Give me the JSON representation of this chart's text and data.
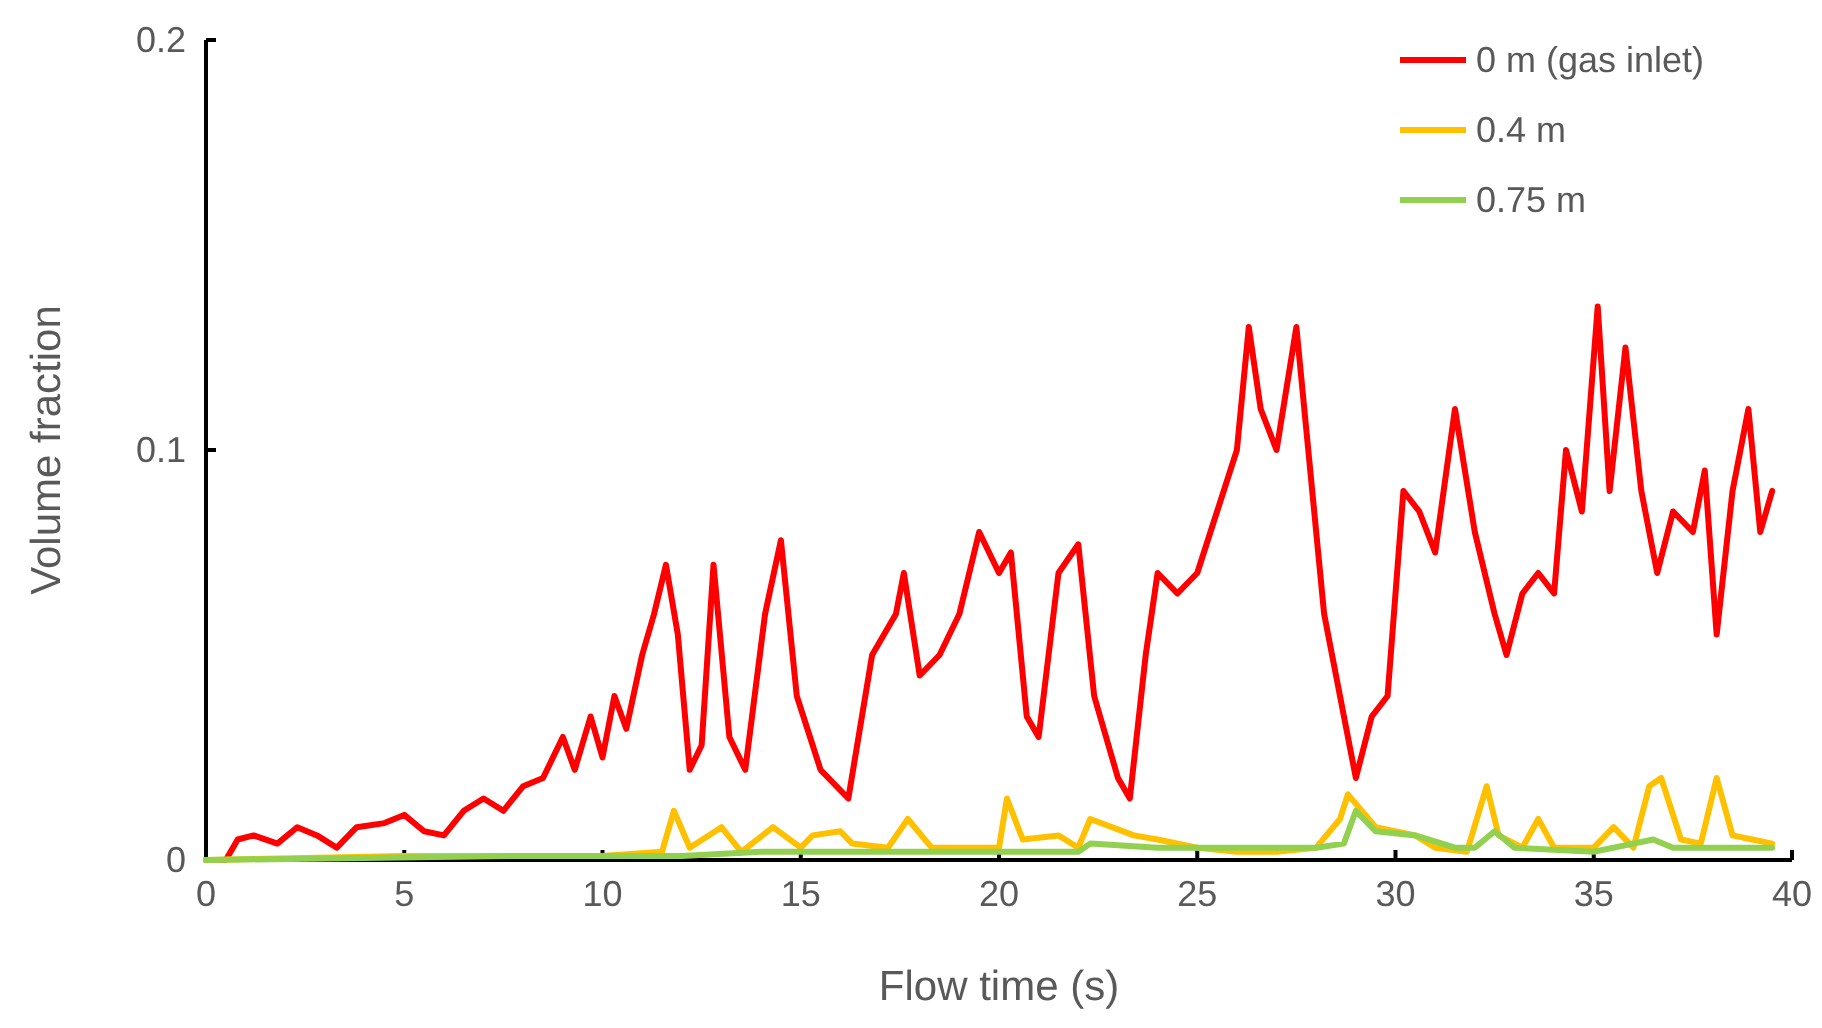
{
  "chart_data": {
    "type": "line",
    "xlabel": "Flow time (s)",
    "ylabel": "Volume fraction",
    "xlim": [
      0,
      40
    ],
    "xticks": [
      0,
      5,
      10,
      15,
      20,
      25,
      30,
      35,
      40
    ],
    "ylim": [
      0,
      0.2
    ],
    "yticks": [
      0,
      0.1,
      0.2
    ],
    "grid": false,
    "legend": "top right",
    "marker": "none",
    "line_style": "solid",
    "series": [
      {
        "name": "0 m (gas inlet)",
        "color": "#ff0000",
        "x": [
          0,
          0.5,
          0.8,
          1.2,
          1.8,
          2.3,
          2.8,
          3.3,
          3.8,
          4.5,
          5,
          5.5,
          6,
          6.5,
          7,
          7.5,
          8,
          8.5,
          9,
          9.3,
          9.7,
          10,
          10.3,
          10.6,
          11,
          11.3,
          11.6,
          11.9,
          12.2,
          12.5,
          12.8,
          13.2,
          13.6,
          14.1,
          14.5,
          14.9,
          15.5,
          16.2,
          16.8,
          17.4,
          17.6,
          18,
          18.5,
          19,
          19.5,
          20,
          20.3,
          20.7,
          21,
          21.5,
          22,
          22.4,
          23,
          23.3,
          23.7,
          24,
          24.5,
          25,
          25.5,
          26,
          26.3,
          26.6,
          27,
          27.5,
          27.8,
          28.2,
          28.6,
          29,
          29.4,
          29.8,
          30.2,
          30.6,
          31,
          31.5,
          32,
          32.5,
          32.8,
          33.2,
          33.6,
          34,
          34.3,
          34.7,
          35.1,
          35.4,
          35.8,
          36.2,
          36.6,
          37,
          37.5,
          37.8,
          38.1,
          38.5,
          38.9,
          39.2,
          39.5
        ],
        "values": [
          0,
          0,
          0.005,
          0.006,
          0.004,
          0.008,
          0.006,
          0.003,
          0.008,
          0.009,
          0.011,
          0.007,
          0.006,
          0.012,
          0.015,
          0.012,
          0.018,
          0.02,
          0.03,
          0.022,
          0.035,
          0.025,
          0.04,
          0.032,
          0.05,
          0.06,
          0.072,
          0.055,
          0.022,
          0.028,
          0.072,
          0.03,
          0.022,
          0.06,
          0.078,
          0.04,
          0.022,
          0.015,
          0.05,
          0.06,
          0.07,
          0.045,
          0.05,
          0.06,
          0.08,
          0.07,
          0.075,
          0.035,
          0.03,
          0.07,
          0.077,
          0.04,
          0.02,
          0.015,
          0.05,
          0.07,
          0.065,
          0.07,
          0.085,
          0.1,
          0.13,
          0.11,
          0.1,
          0.13,
          0.1,
          0.06,
          0.04,
          0.02,
          0.035,
          0.04,
          0.09,
          0.085,
          0.075,
          0.11,
          0.08,
          0.06,
          0.05,
          0.065,
          0.07,
          0.065,
          0.1,
          0.085,
          0.135,
          0.09,
          0.125,
          0.09,
          0.07,
          0.085,
          0.08,
          0.095,
          0.055,
          0.09,
          0.11,
          0.08,
          0.09
        ]
      },
      {
        "name": "0.4 m",
        "color": "#ffc000",
        "x": [
          0,
          5,
          10,
          11.5,
          11.8,
          12.2,
          13,
          13.5,
          14.3,
          15,
          15.3,
          16,
          16.3,
          17.2,
          17.7,
          18.3,
          20,
          20.2,
          20.6,
          21.5,
          22,
          22.3,
          23.4,
          24,
          25,
          26,
          27,
          28,
          28.6,
          28.8,
          29.5,
          30.5,
          31,
          31.8,
          32.3,
          32.6,
          33.2,
          33.6,
          34,
          35,
          35.5,
          36,
          36.4,
          36.7,
          37.2,
          37.7,
          38.1,
          38.5,
          39,
          39.5
        ],
        "values": [
          0,
          0.001,
          0.001,
          0.002,
          0.012,
          0.003,
          0.008,
          0.002,
          0.008,
          0.003,
          0.006,
          0.007,
          0.004,
          0.003,
          0.01,
          0.003,
          0.003,
          0.015,
          0.005,
          0.006,
          0.003,
          0.01,
          0.006,
          0.005,
          0.003,
          0.002,
          0.002,
          0.003,
          0.01,
          0.016,
          0.008,
          0.006,
          0.003,
          0.002,
          0.018,
          0.006,
          0.003,
          0.01,
          0.003,
          0.003,
          0.008,
          0.003,
          0.018,
          0.02,
          0.005,
          0.004,
          0.02,
          0.006,
          0.005,
          0.004
        ]
      },
      {
        "name": "0.75 m",
        "color": "#92d050",
        "x": [
          0,
          8,
          10,
          12,
          14,
          16,
          18,
          20,
          22,
          22.3,
          24,
          26,
          28,
          28.7,
          29,
          29.5,
          30.5,
          31.5,
          32,
          32.5,
          33,
          35,
          36,
          36.5,
          37,
          39.5
        ],
        "values": [
          0,
          0.001,
          0.001,
          0.001,
          0.002,
          0.002,
          0.002,
          0.002,
          0.002,
          0.004,
          0.003,
          0.003,
          0.003,
          0.004,
          0.012,
          0.007,
          0.006,
          0.003,
          0.003,
          0.007,
          0.003,
          0.002,
          0.004,
          0.005,
          0.003,
          0.003
        ]
      }
    ]
  }
}
